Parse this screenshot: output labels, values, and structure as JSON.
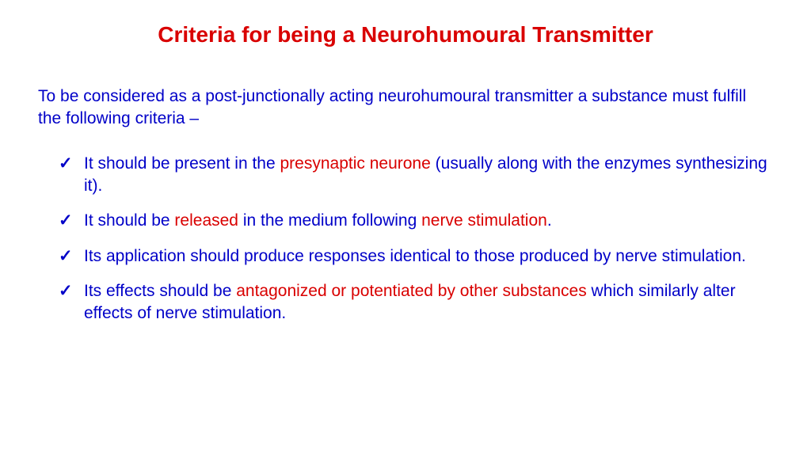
{
  "colors": {
    "title": "#d90000",
    "body_blue": "#0000c8",
    "highlight_red": "#d90000",
    "check": "#0000c8",
    "background": "#ffffff"
  },
  "typography": {
    "title_fontsize": 28,
    "body_fontsize": 21,
    "title_weight": "bold",
    "body_weight": "normal"
  },
  "title": "Criteria for being a Neurohumoural Transmitter",
  "intro": "To be considered as a post-junctionally acting neurohumoural transmitter a substance must fulfill the following criteria –",
  "bullets": [
    {
      "segments": [
        {
          "text": "It should be present in the ",
          "color": "body_blue"
        },
        {
          "text": "presynaptic neurone ",
          "color": "highlight_red"
        },
        {
          "text": "(usually along with the enzymes synthesizing it).",
          "color": "body_blue"
        }
      ]
    },
    {
      "segments": [
        {
          "text": "It should be ",
          "color": "body_blue"
        },
        {
          "text": "released ",
          "color": "highlight_red"
        },
        {
          "text": "in the medium following ",
          "color": "body_blue"
        },
        {
          "text": "nerve stimulation",
          "color": "highlight_red"
        },
        {
          "text": ".",
          "color": "body_blue"
        }
      ]
    },
    {
      "segments": [
        {
          "text": "Its application should produce responses identical to those produced by nerve stimulation.",
          "color": "body_blue"
        }
      ]
    },
    {
      "segments": [
        {
          "text": "Its effects should be ",
          "color": "body_blue"
        },
        {
          "text": "antagonized or potentiated by other substances ",
          "color": "highlight_red"
        },
        {
          "text": "which similarly alter effects of nerve stimulation.",
          "color": "body_blue"
        }
      ]
    }
  ]
}
